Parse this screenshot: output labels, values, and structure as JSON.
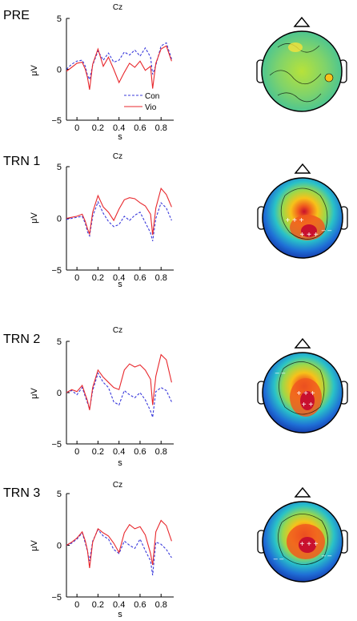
{
  "figure": {
    "legend": {
      "con_label": "Con",
      "vio_label": "Vio"
    },
    "colors": {
      "con": "#3a3adb",
      "vio": "#e8282d",
      "axis": "#000000"
    }
  },
  "chart_data": [
    {
      "type": "line",
      "panel": "PRE",
      "title": "Cz",
      "xlabel": "s",
      "ylabel": "μV",
      "xlim": [
        -0.1,
        0.92
      ],
      "ylim": [
        -5,
        5
      ],
      "xticks": [
        0,
        0.2,
        0.4,
        0.6,
        0.8
      ],
      "xtick_labels": [
        "0",
        "0.2",
        "0.4",
        "0.6",
        "0.8"
      ],
      "yticks": [
        -5,
        0,
        5
      ],
      "ytick_labels": [
        "−5",
        "0",
        "5"
      ],
      "legend_position": "lower-right",
      "x": [
        -0.1,
        -0.05,
        0,
        0.05,
        0.08,
        0.1,
        0.12,
        0.15,
        0.2,
        0.25,
        0.3,
        0.35,
        0.4,
        0.45,
        0.5,
        0.55,
        0.6,
        0.65,
        0.7,
        0.72,
        0.75,
        0.8,
        0.85,
        0.9
      ],
      "series": [
        {
          "name": "Con",
          "style": "dashed",
          "values": [
            0,
            0.5,
            0.8,
            0.9,
            0.3,
            -0.6,
            -1.0,
            0.4,
            1.8,
            0.9,
            1.6,
            0.7,
            0.9,
            1.7,
            1.4,
            1.9,
            1.3,
            2.1,
            1.2,
            -0.5,
            0.4,
            2.3,
            2.6,
            1.0
          ]
        },
        {
          "name": "Vio",
          "style": "solid",
          "values": [
            -0.2,
            0.2,
            0.6,
            0.7,
            0.0,
            -0.8,
            -2.0,
            0.5,
            2.0,
            0.3,
            1.2,
            0.0,
            -1.3,
            -0.3,
            0.6,
            0.2,
            0.8,
            -0.1,
            0.3,
            -1.9,
            0.6,
            2.0,
            2.3,
            0.8
          ]
        }
      ],
      "topomap": {
        "type": "heatmap",
        "description_values": "near-zero, scattered green/yellow"
      }
    },
    {
      "type": "line",
      "panel": "TRN 1",
      "title": "Cz",
      "xlabel": "s",
      "ylabel": "μV",
      "xlim": [
        -0.1,
        0.92
      ],
      "ylim": [
        -5,
        5
      ],
      "xticks": [
        0,
        0.2,
        0.4,
        0.6,
        0.8
      ],
      "xtick_labels": [
        "0",
        "0.2",
        "0.4",
        "0.6",
        "0.8"
      ],
      "yticks": [
        -5,
        0,
        5
      ],
      "ytick_labels": [
        "−5",
        "0",
        "5"
      ],
      "x": [
        -0.1,
        -0.05,
        0,
        0.05,
        0.08,
        0.1,
        0.12,
        0.15,
        0.2,
        0.25,
        0.3,
        0.35,
        0.4,
        0.45,
        0.5,
        0.55,
        0.6,
        0.65,
        0.7,
        0.72,
        0.75,
        0.8,
        0.85,
        0.9
      ],
      "series": [
        {
          "name": "Con",
          "values": [
            -0.1,
            0.0,
            0.1,
            0.2,
            -0.5,
            -1.3,
            -1.7,
            0.2,
            1.6,
            0.5,
            -0.3,
            -0.8,
            -0.6,
            0.2,
            -0.2,
            0.3,
            0.6,
            -0.4,
            -1.4,
            -2.2,
            0.0,
            1.5,
            1.0,
            -0.2
          ]
        },
        {
          "name": "Vio",
          "values": [
            0.0,
            0.1,
            0.2,
            0.4,
            -0.3,
            -1.0,
            -1.5,
            0.6,
            2.2,
            1.1,
            0.6,
            -0.2,
            0.9,
            1.8,
            2.0,
            1.9,
            1.5,
            1.2,
            0.4,
            -1.6,
            1.0,
            2.9,
            2.3,
            1.1
          ]
        }
      ],
      "topomap": {
        "type": "heatmap"
      }
    },
    {
      "type": "line",
      "panel": "TRN 2",
      "title": "Cz",
      "xlabel": "s",
      "ylabel": "μV",
      "xlim": [
        -0.1,
        0.92
      ],
      "ylim": [
        -5,
        5
      ],
      "xticks": [
        0,
        0.2,
        0.4,
        0.6,
        0.8
      ],
      "xtick_labels": [
        "0",
        "0.2",
        "0.4",
        "0.6",
        "0.8"
      ],
      "yticks": [
        -5,
        0,
        5
      ],
      "ytick_labels": [
        "−5",
        "0",
        "5"
      ],
      "x": [
        -0.1,
        -0.05,
        0,
        0.05,
        0.08,
        0.1,
        0.12,
        0.15,
        0.2,
        0.25,
        0.3,
        0.35,
        0.4,
        0.45,
        0.5,
        0.55,
        0.6,
        0.65,
        0.7,
        0.72,
        0.75,
        0.8,
        0.85,
        0.9
      ],
      "series": [
        {
          "name": "Con",
          "values": [
            0.0,
            0.2,
            -0.2,
            0.5,
            -0.4,
            -1.0,
            -1.6,
            0.2,
            1.9,
            1.0,
            0.5,
            -0.9,
            -1.2,
            0.2,
            -0.2,
            -0.5,
            0.0,
            -0.7,
            -1.8,
            -2.4,
            0.1,
            0.5,
            0.2,
            -0.9
          ]
        },
        {
          "name": "Vio",
          "values": [
            0.0,
            0.3,
            0.1,
            0.7,
            -0.2,
            -0.8,
            -1.7,
            0.5,
            2.2,
            1.5,
            1.0,
            0.5,
            0.3,
            2.2,
            2.8,
            2.5,
            2.7,
            2.2,
            1.3,
            -1.2,
            1.6,
            3.7,
            3.2,
            1.0
          ]
        }
      ],
      "topomap": {
        "type": "heatmap"
      }
    },
    {
      "type": "line",
      "panel": "TRN 3",
      "title": "Cz",
      "xlabel": "s",
      "ylabel": "μV",
      "xlim": [
        -0.1,
        0.92
      ],
      "ylim": [
        -5,
        5
      ],
      "xticks": [
        0,
        0.2,
        0.4,
        0.6,
        0.8
      ],
      "xtick_labels": [
        "0",
        "0.2",
        "0.4",
        "0.6",
        "0.8"
      ],
      "yticks": [
        -5,
        0,
        5
      ],
      "ytick_labels": [
        "−5",
        "0",
        "5"
      ],
      "x": [
        -0.1,
        -0.05,
        0,
        0.05,
        0.08,
        0.1,
        0.12,
        0.15,
        0.2,
        0.25,
        0.3,
        0.35,
        0.4,
        0.45,
        0.5,
        0.55,
        0.6,
        0.65,
        0.7,
        0.72,
        0.75,
        0.8,
        0.85,
        0.9
      ],
      "series": [
        {
          "name": "Con",
          "values": [
            0.0,
            0.2,
            0.6,
            1.2,
            0.2,
            -0.6,
            -1.5,
            0.4,
            1.5,
            0.9,
            0.6,
            -0.4,
            -0.8,
            0.4,
            0.0,
            -0.3,
            0.6,
            -0.5,
            -1.5,
            -2.9,
            0.3,
            0.1,
            -0.4,
            -1.2
          ]
        },
        {
          "name": "Vio",
          "values": [
            0.0,
            0.3,
            0.7,
            1.3,
            0.4,
            -0.5,
            -2.2,
            0.3,
            1.6,
            1.2,
            0.9,
            0.2,
            -0.7,
            1.2,
            2.0,
            1.6,
            1.8,
            1.0,
            -0.8,
            -1.9,
            1.3,
            2.4,
            1.9,
            0.4
          ]
        }
      ],
      "topomap": {
        "type": "heatmap"
      }
    }
  ]
}
